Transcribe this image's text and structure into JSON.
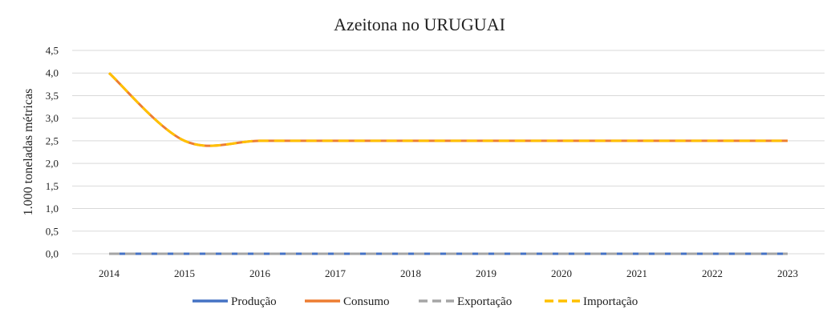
{
  "chart_data": {
    "type": "line",
    "title": "Azeitona no URUGUAI",
    "xlabel": "",
    "ylabel": "1.000 toneladas métricas",
    "ylim": [
      0,
      4.5
    ],
    "y_ticks": [
      "0,0",
      "0,5",
      "1,0",
      "1,5",
      "2,0",
      "2,5",
      "3,0",
      "3,5",
      "4,0",
      "4,5"
    ],
    "categories": [
      "2014",
      "2015",
      "2016",
      "2017",
      "2018",
      "2019",
      "2020",
      "2021",
      "2022",
      "2023"
    ],
    "grid": true,
    "legend_position": "bottom",
    "series": [
      {
        "name": "Produção",
        "color": "#4472C4",
        "dash": "solid",
        "values": [
          0,
          0,
          0,
          0,
          0,
          0,
          0,
          0,
          0,
          0
        ]
      },
      {
        "name": "Consumo",
        "color": "#ED7D31",
        "dash": "solid",
        "values": [
          4.0,
          2.5,
          2.5,
          2.5,
          2.5,
          2.5,
          2.5,
          2.5,
          2.5,
          2.5
        ]
      },
      {
        "name": "Exportação",
        "color": "#A5A5A5",
        "dash": "dashed",
        "values": [
          0,
          0,
          0,
          0,
          0,
          0,
          0,
          0,
          0,
          0
        ]
      },
      {
        "name": "Importação",
        "color": "#FFC000",
        "dash": "dashed",
        "values": [
          4.0,
          2.5,
          2.5,
          2.5,
          2.5,
          2.5,
          2.5,
          2.5,
          2.5,
          2.5
        ]
      }
    ]
  }
}
